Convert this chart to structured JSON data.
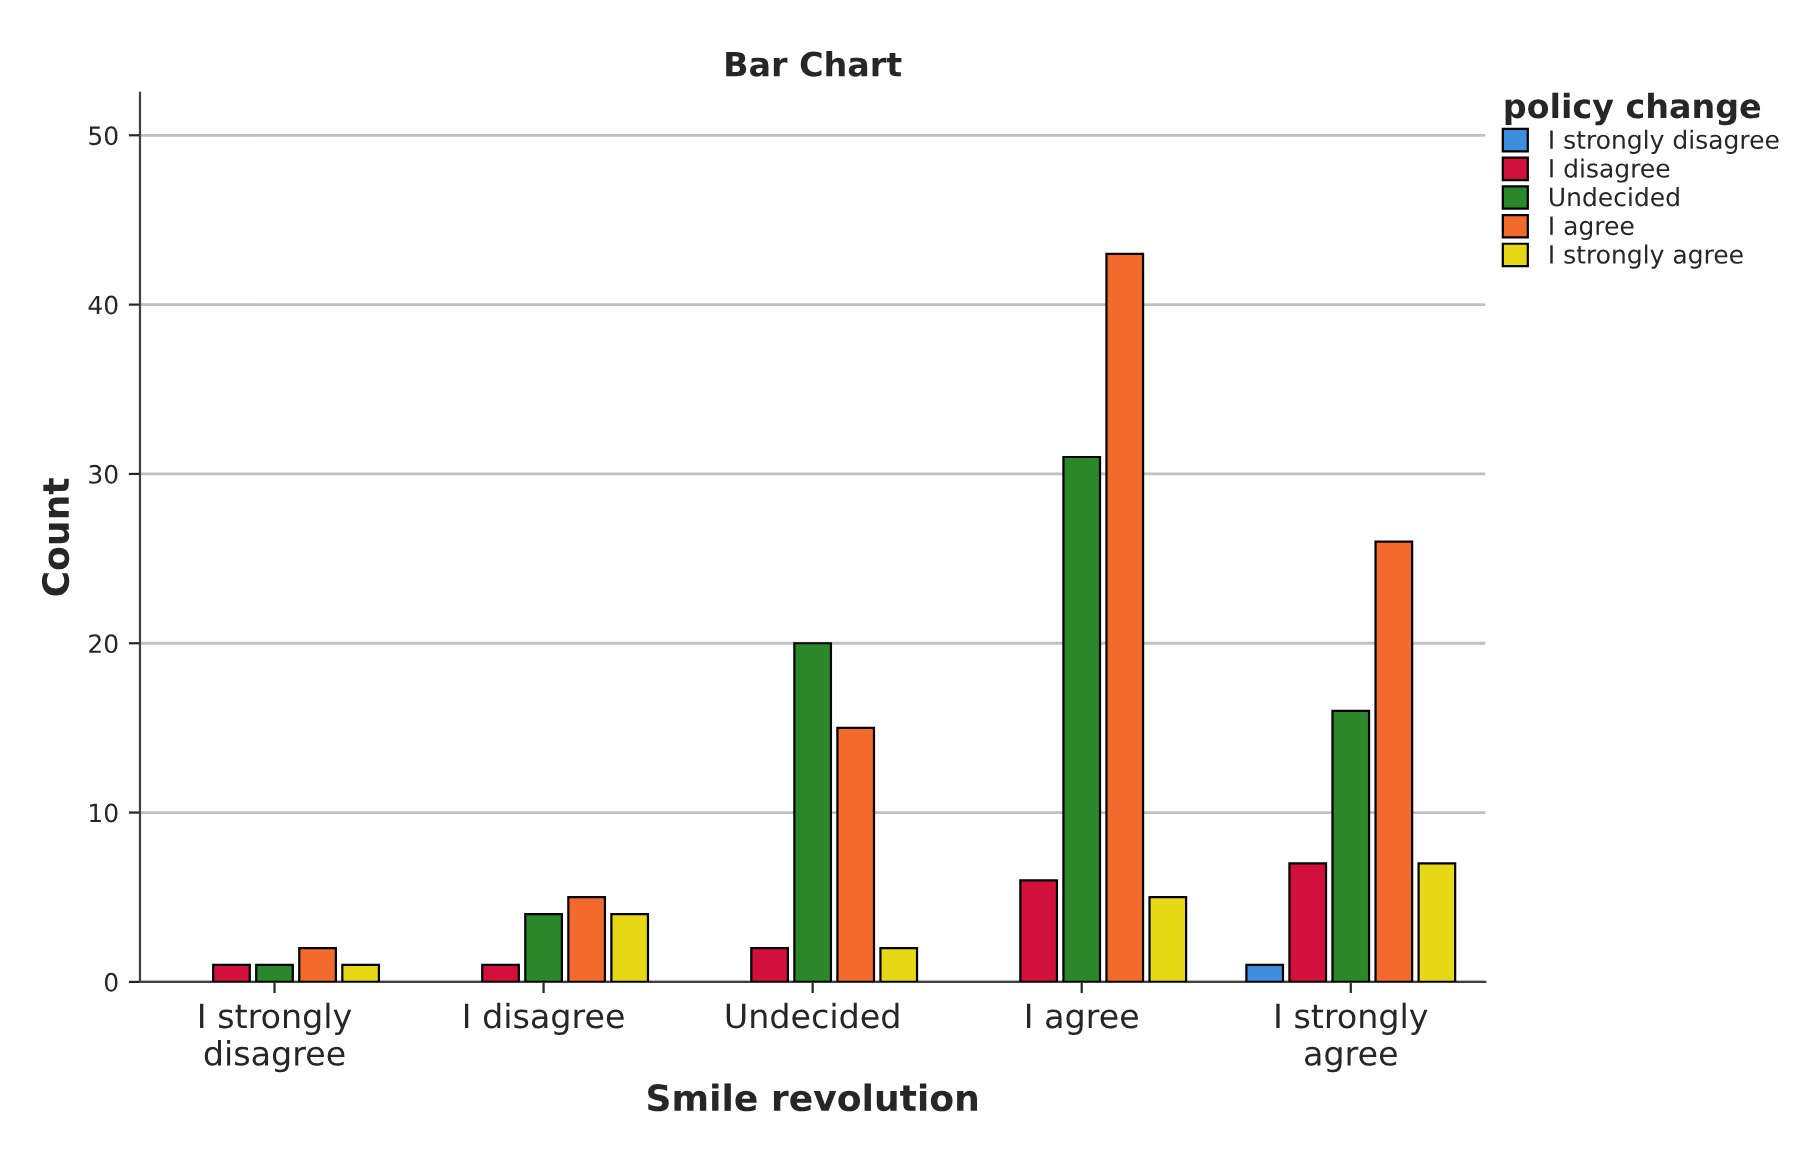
{
  "chart_data": {
    "type": "bar",
    "title": "Bar Chart",
    "xlabel": "Smile revolution",
    "ylabel": "Count",
    "legend_title": "policy change",
    "categories": [
      "I strongly disagree",
      "I disagree",
      "Undecided",
      "I agree",
      "I strongly agree"
    ],
    "series": [
      {
        "name": "I strongly disagree",
        "color": "#3e8ede",
        "values": [
          null,
          null,
          null,
          null,
          1
        ]
      },
      {
        "name": "I disagree",
        "color": "#d2103c",
        "values": [
          1,
          1,
          2,
          6,
          7
        ]
      },
      {
        "name": "Undecided",
        "color": "#2a882a",
        "values": [
          1,
          4,
          20,
          31,
          16
        ]
      },
      {
        "name": "I agree",
        "color": "#f26a2c",
        "values": [
          2,
          5,
          15,
          43,
          26
        ]
      },
      {
        "name": "I strongly agree",
        "color": "#e6d816",
        "values": [
          1,
          4,
          2,
          5,
          7
        ]
      }
    ],
    "ylim": [
      0,
      52.5
    ],
    "yticks": [
      0,
      10,
      20,
      30,
      40,
      50
    ],
    "grid": "y",
    "legend": "top right"
  }
}
